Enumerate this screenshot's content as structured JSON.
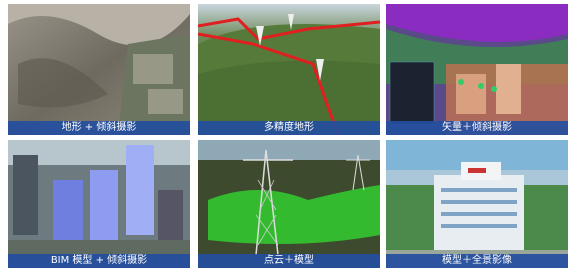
{
  "tiles": [
    {
      "caption": "地形 + 倾斜摄影"
    },
    {
      "caption": "多精度地形"
    },
    {
      "caption": "矢量＋倾斜摄影"
    },
    {
      "caption": "BIM 模型 + 倾斜摄影"
    },
    {
      "caption": "点云＋模型"
    },
    {
      "caption": "模型＋全景影像"
    }
  ]
}
